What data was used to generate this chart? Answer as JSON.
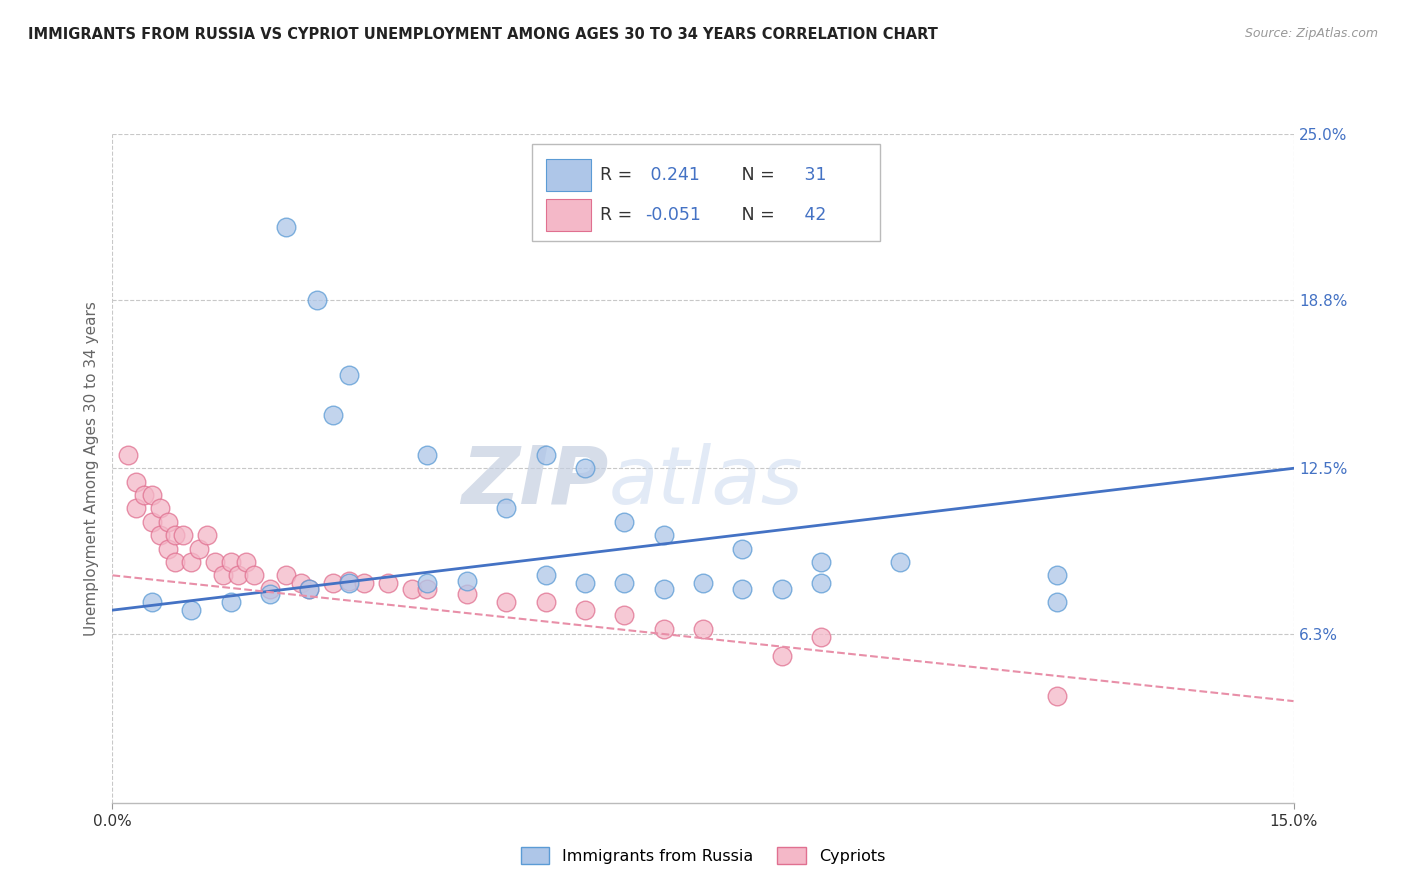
{
  "title": "IMMIGRANTS FROM RUSSIA VS CYPRIOT UNEMPLOYMENT AMONG AGES 30 TO 34 YEARS CORRELATION CHART",
  "source": "Source: ZipAtlas.com",
  "ylabel": "Unemployment Among Ages 30 to 34 years",
  "x_min": 0.0,
  "x_max": 0.15,
  "y_min": 0.0,
  "y_max": 0.25,
  "y_tick_labels_right": [
    "6.3%",
    "12.5%",
    "18.8%",
    "25.0%"
  ],
  "y_tick_values_right": [
    0.063,
    0.125,
    0.188,
    0.25
  ],
  "watermark_zip": "ZIP",
  "watermark_atlas": "atlas",
  "legend_label1": "Immigrants from Russia",
  "legend_label2": "Cypriots",
  "R1": 0.241,
  "N1": 31,
  "R2": -0.051,
  "N2": 42,
  "blue_scatter_x": [
    0.022,
    0.026,
    0.03,
    0.028,
    0.04,
    0.055,
    0.06,
    0.05,
    0.065,
    0.07,
    0.08,
    0.09,
    0.1,
    0.12,
    0.005,
    0.01,
    0.015,
    0.02,
    0.025,
    0.03,
    0.04,
    0.045,
    0.055,
    0.06,
    0.065,
    0.07,
    0.075,
    0.08,
    0.085,
    0.09,
    0.12
  ],
  "blue_scatter_y": [
    0.215,
    0.188,
    0.16,
    0.145,
    0.13,
    0.13,
    0.125,
    0.11,
    0.105,
    0.1,
    0.095,
    0.09,
    0.09,
    0.085,
    0.075,
    0.072,
    0.075,
    0.078,
    0.08,
    0.082,
    0.082,
    0.083,
    0.085,
    0.082,
    0.082,
    0.08,
    0.082,
    0.08,
    0.08,
    0.082,
    0.075
  ],
  "pink_scatter_x": [
    0.002,
    0.003,
    0.003,
    0.004,
    0.005,
    0.005,
    0.006,
    0.006,
    0.007,
    0.007,
    0.008,
    0.008,
    0.009,
    0.01,
    0.011,
    0.012,
    0.013,
    0.014,
    0.015,
    0.016,
    0.017,
    0.018,
    0.02,
    0.022,
    0.024,
    0.025,
    0.028,
    0.03,
    0.032,
    0.035,
    0.038,
    0.04,
    0.045,
    0.05,
    0.055,
    0.06,
    0.065,
    0.07,
    0.075,
    0.085,
    0.09,
    0.12
  ],
  "pink_scatter_y": [
    0.13,
    0.12,
    0.11,
    0.115,
    0.105,
    0.115,
    0.1,
    0.11,
    0.095,
    0.105,
    0.09,
    0.1,
    0.1,
    0.09,
    0.095,
    0.1,
    0.09,
    0.085,
    0.09,
    0.085,
    0.09,
    0.085,
    0.08,
    0.085,
    0.082,
    0.08,
    0.082,
    0.083,
    0.082,
    0.082,
    0.08,
    0.08,
    0.078,
    0.075,
    0.075,
    0.072,
    0.07,
    0.065,
    0.065,
    0.055,
    0.062,
    0.04
  ],
  "blue_line_y_start": 0.072,
  "blue_line_y_end": 0.125,
  "pink_line_y_start": 0.085,
  "pink_line_y_end": 0.038,
  "scatter_size": 180,
  "blue_face_color": "#aec6e8",
  "blue_edge_color": "#5b9bd5",
  "pink_face_color": "#f4b8c8",
  "pink_edge_color": "#e07090",
  "blue_line_color": "#4472c4",
  "pink_line_color": "#e88fa8",
  "background_color": "#ffffff",
  "grid_color": "#c8c8c8",
  "right_tick_color": "#4472c4",
  "legend_text_color": "#333333",
  "legend_value_color": "#4472c4"
}
